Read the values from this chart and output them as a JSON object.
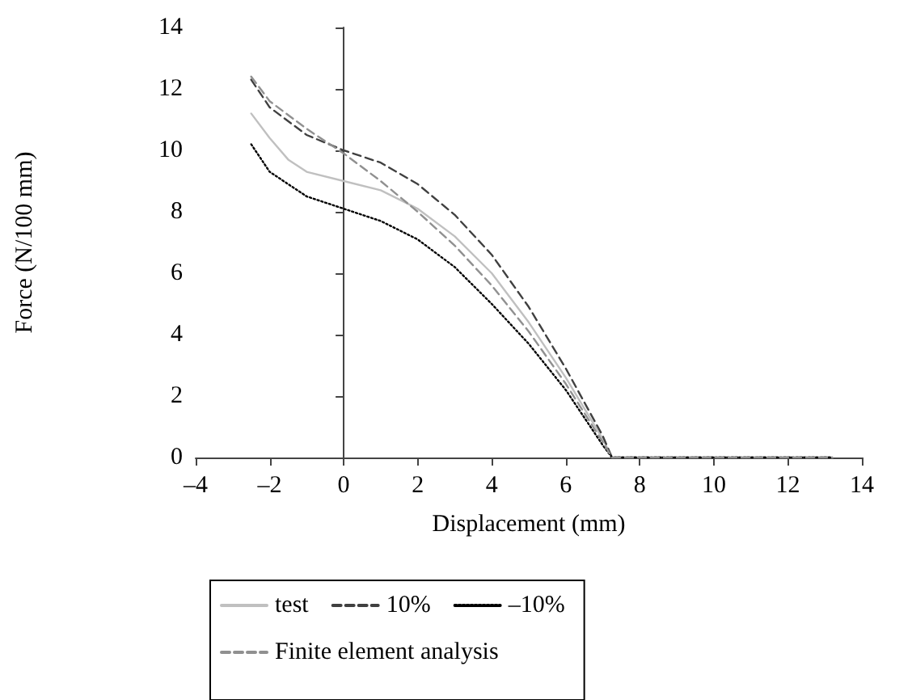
{
  "chart_data": {
    "type": "line",
    "xlabel": "Displacement (mm)",
    "ylabel": "Force (N/100 mm)",
    "xlim": [
      -4,
      14
    ],
    "xticks": [
      {
        "value": -4,
        "label": "–4"
      },
      {
        "value": -2,
        "label": "–2"
      },
      0,
      2,
      4,
      6,
      8,
      10,
      12,
      14
    ],
    "ylim": [
      0,
      14
    ],
    "yticks": [
      0,
      2,
      4,
      6,
      8,
      10,
      12,
      14
    ],
    "legend": "bottom",
    "marker": "none",
    "series": [
      {
        "name": "test",
        "color": "#c0c0c0",
        "line_style": "solid",
        "x": [
          -2.5,
          -2,
          -1.5,
          -1,
          0,
          1,
          2,
          3,
          4,
          5,
          6,
          7,
          7.25,
          13.2
        ],
        "values": [
          11.2,
          10.4,
          9.7,
          9.3,
          9.0,
          8.7,
          8.1,
          7.2,
          6.0,
          4.4,
          2.6,
          0.6,
          0,
          0
        ]
      },
      {
        "name": "10%",
        "color": "#404040",
        "line_style": "dashed",
        "x": [
          -2.5,
          -2,
          -1,
          0,
          1,
          2,
          3,
          4,
          5,
          6,
          7,
          7.25,
          13.2
        ],
        "values": [
          12.3,
          11.4,
          10.5,
          10.0,
          9.6,
          8.9,
          7.9,
          6.6,
          4.9,
          2.9,
          0.7,
          0,
          0
        ]
      },
      {
        "name": "–10%",
        "color": "#000000",
        "line_style": "dotted",
        "x": [
          -2.5,
          -2,
          -1,
          0,
          1,
          2,
          3,
          4,
          5,
          6,
          7,
          7.25,
          13.2
        ],
        "values": [
          10.2,
          9.3,
          8.5,
          8.1,
          7.7,
          7.1,
          6.2,
          5.0,
          3.7,
          2.2,
          0.4,
          0,
          0
        ]
      },
      {
        "name": "Finite element analysis",
        "color": "#909090",
        "line_style": "dashed",
        "x": [
          -2.5,
          -2,
          -1,
          0,
          1,
          2,
          3,
          4,
          5,
          6,
          7,
          7.25,
          13.2
        ],
        "values": [
          12.4,
          11.6,
          10.7,
          9.9,
          9.0,
          8.0,
          6.9,
          5.6,
          4.1,
          2.4,
          0.5,
          0,
          0
        ]
      }
    ]
  }
}
